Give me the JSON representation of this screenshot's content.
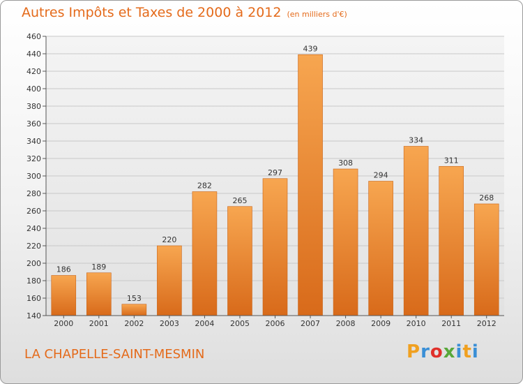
{
  "chart_data": {
    "type": "bar",
    "title": "Autres Impôts et Taxes de 2000 à 2012",
    "subtitle": "(en milliers d'€)",
    "xlabel": "",
    "ylabel": "",
    "categories": [
      "2000",
      "2001",
      "2002",
      "2003",
      "2004",
      "2005",
      "2006",
      "2007",
      "2008",
      "2009",
      "2010",
      "2011",
      "2012"
    ],
    "values": [
      186,
      189,
      153,
      220,
      282,
      265,
      297,
      439,
      308,
      294,
      334,
      311,
      268
    ],
    "ylim": [
      140,
      460
    ],
    "yticks": [
      140,
      160,
      180,
      200,
      220,
      240,
      260,
      280,
      300,
      320,
      340,
      360,
      380,
      400,
      420,
      440,
      460
    ],
    "grid": true,
    "legend": "none",
    "bar_color": "#f08b33",
    "bar_color_light": "#f7a650",
    "bar_color_dark": "#d86a1a"
  },
  "place_name": "LA CHAPELLE-SAINT-MESMIN",
  "brand": {
    "letters": [
      "P",
      "r",
      "o",
      "x",
      "i",
      "t",
      "i"
    ],
    "colors": [
      "#f0a020",
      "#3a8fd6",
      "#e0302a",
      "#58a83a",
      "#3a8fd6",
      "#f0a020",
      "#3a8fd6"
    ]
  }
}
